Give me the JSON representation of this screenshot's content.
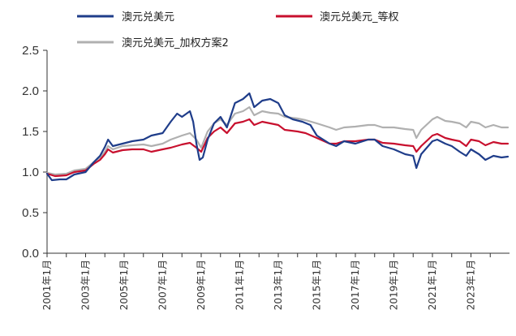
{
  "chart_data": {
    "type": "line",
    "title": "",
    "xlabel": "",
    "ylabel": "",
    "ylim": [
      0,
      2.5
    ],
    "yticks": [
      "0.0",
      "0.5",
      "1.0",
      "1.5",
      "2.0",
      "2.5"
    ],
    "xlim": [
      "2001-01",
      "2024-12"
    ],
    "xticks": [
      "2001年1月",
      "2003年1月",
      "2005年1月",
      "2007年1月",
      "2009年1月",
      "2011年1月",
      "2013年1月",
      "2015年1月",
      "2017年1月",
      "2019年1月",
      "2021年1月",
      "2023年1月"
    ],
    "grid": false,
    "legend_position": "top",
    "series": [
      {
        "name": "澳元兑美元",
        "color": "#1f3d8a",
        "points": [
          [
            "2001-01",
            0.98
          ],
          [
            "2001-04",
            0.9
          ],
          [
            "2001-09",
            0.91
          ],
          [
            "2002-01",
            0.91
          ],
          [
            "2002-06",
            0.97
          ],
          [
            "2003-01",
            1.0
          ],
          [
            "2003-06",
            1.12
          ],
          [
            "2003-10",
            1.2
          ],
          [
            "2004-01",
            1.31
          ],
          [
            "2004-03",
            1.4
          ],
          [
            "2004-06",
            1.32
          ],
          [
            "2004-12",
            1.35
          ],
          [
            "2005-06",
            1.38
          ],
          [
            "2006-01",
            1.4
          ],
          [
            "2006-06",
            1.45
          ],
          [
            "2007-01",
            1.48
          ],
          [
            "2007-06",
            1.62
          ],
          [
            "2007-10",
            1.72
          ],
          [
            "2008-01",
            1.68
          ],
          [
            "2008-06",
            1.75
          ],
          [
            "2008-08",
            1.62
          ],
          [
            "2008-10",
            1.35
          ],
          [
            "2008-12",
            1.15
          ],
          [
            "2009-02",
            1.18
          ],
          [
            "2009-05",
            1.4
          ],
          [
            "2009-09",
            1.6
          ],
          [
            "2010-01",
            1.68
          ],
          [
            "2010-05",
            1.55
          ],
          [
            "2010-10",
            1.85
          ],
          [
            "2011-03",
            1.9
          ],
          [
            "2011-07",
            1.97
          ],
          [
            "2011-10",
            1.8
          ],
          [
            "2012-03",
            1.88
          ],
          [
            "2012-08",
            1.9
          ],
          [
            "2013-01",
            1.85
          ],
          [
            "2013-05",
            1.7
          ],
          [
            "2013-10",
            1.65
          ],
          [
            "2014-04",
            1.62
          ],
          [
            "2014-09",
            1.58
          ],
          [
            "2015-01",
            1.45
          ],
          [
            "2015-09",
            1.35
          ],
          [
            "2016-01",
            1.32
          ],
          [
            "2016-06",
            1.38
          ],
          [
            "2017-01",
            1.35
          ],
          [
            "2017-09",
            1.4
          ],
          [
            "2018-01",
            1.4
          ],
          [
            "2018-06",
            1.32
          ],
          [
            "2019-01",
            1.28
          ],
          [
            "2019-08",
            1.22
          ],
          [
            "2020-01",
            1.2
          ],
          [
            "2020-03",
            1.05
          ],
          [
            "2020-06",
            1.22
          ],
          [
            "2021-01",
            1.38
          ],
          [
            "2021-04",
            1.4
          ],
          [
            "2021-09",
            1.35
          ],
          [
            "2022-01",
            1.32
          ],
          [
            "2022-06",
            1.25
          ],
          [
            "2022-10",
            1.2
          ],
          [
            "2023-01",
            1.28
          ],
          [
            "2023-06",
            1.22
          ],
          [
            "2023-10",
            1.15
          ],
          [
            "2024-03",
            1.2
          ],
          [
            "2024-08",
            1.18
          ],
          [
            "2024-12",
            1.19
          ]
        ]
      },
      {
        "name": "澳元兑美元_等权",
        "color": "#c8102e",
        "points": [
          [
            "2001-01",
            0.98
          ],
          [
            "2001-06",
            0.95
          ],
          [
            "2002-01",
            0.96
          ],
          [
            "2002-06",
            1.0
          ],
          [
            "2003-01",
            1.02
          ],
          [
            "2003-06",
            1.1
          ],
          [
            "2003-10",
            1.15
          ],
          [
            "2004-01",
            1.22
          ],
          [
            "2004-03",
            1.28
          ],
          [
            "2004-06",
            1.24
          ],
          [
            "2004-12",
            1.27
          ],
          [
            "2005-06",
            1.28
          ],
          [
            "2006-01",
            1.28
          ],
          [
            "2006-06",
            1.25
          ],
          [
            "2007-01",
            1.28
          ],
          [
            "2007-06",
            1.3
          ],
          [
            "2008-01",
            1.34
          ],
          [
            "2008-06",
            1.36
          ],
          [
            "2008-10",
            1.3
          ],
          [
            "2009-01",
            1.25
          ],
          [
            "2009-05",
            1.42
          ],
          [
            "2009-09",
            1.5
          ],
          [
            "2010-01",
            1.55
          ],
          [
            "2010-05",
            1.48
          ],
          [
            "2010-10",
            1.6
          ],
          [
            "2011-03",
            1.62
          ],
          [
            "2011-07",
            1.65
          ],
          [
            "2011-10",
            1.58
          ],
          [
            "2012-03",
            1.62
          ],
          [
            "2012-08",
            1.6
          ],
          [
            "2013-01",
            1.58
          ],
          [
            "2013-05",
            1.52
          ],
          [
            "2014-01",
            1.5
          ],
          [
            "2014-06",
            1.48
          ],
          [
            "2015-01",
            1.42
          ],
          [
            "2015-09",
            1.35
          ],
          [
            "2016-01",
            1.35
          ],
          [
            "2016-06",
            1.38
          ],
          [
            "2017-01",
            1.38
          ],
          [
            "2017-09",
            1.4
          ],
          [
            "2018-01",
            1.4
          ],
          [
            "2018-06",
            1.36
          ],
          [
            "2019-01",
            1.35
          ],
          [
            "2019-08",
            1.33
          ],
          [
            "2020-01",
            1.32
          ],
          [
            "2020-03",
            1.25
          ],
          [
            "2020-06",
            1.32
          ],
          [
            "2021-01",
            1.45
          ],
          [
            "2021-04",
            1.47
          ],
          [
            "2021-09",
            1.42
          ],
          [
            "2022-01",
            1.4
          ],
          [
            "2022-06",
            1.38
          ],
          [
            "2022-10",
            1.32
          ],
          [
            "2023-01",
            1.4
          ],
          [
            "2023-06",
            1.38
          ],
          [
            "2023-10",
            1.33
          ],
          [
            "2024-03",
            1.37
          ],
          [
            "2024-08",
            1.35
          ],
          [
            "2024-12",
            1.35
          ]
        ]
      },
      {
        "name": "澳元兑美元_加权方案2",
        "color": "#b0b0b0",
        "points": [
          [
            "2001-01",
            0.99
          ],
          [
            "2001-06",
            0.97
          ],
          [
            "2002-01",
            0.98
          ],
          [
            "2002-06",
            1.02
          ],
          [
            "2003-01",
            1.04
          ],
          [
            "2003-06",
            1.12
          ],
          [
            "2003-10",
            1.18
          ],
          [
            "2004-01",
            1.25
          ],
          [
            "2004-03",
            1.32
          ],
          [
            "2004-06",
            1.28
          ],
          [
            "2004-12",
            1.32
          ],
          [
            "2005-06",
            1.33
          ],
          [
            "2006-01",
            1.34
          ],
          [
            "2006-06",
            1.32
          ],
          [
            "2007-01",
            1.35
          ],
          [
            "2007-06",
            1.4
          ],
          [
            "2008-01",
            1.45
          ],
          [
            "2008-06",
            1.48
          ],
          [
            "2008-10",
            1.4
          ],
          [
            "2009-01",
            1.3
          ],
          [
            "2009-05",
            1.5
          ],
          [
            "2009-09",
            1.6
          ],
          [
            "2010-01",
            1.65
          ],
          [
            "2010-05",
            1.58
          ],
          [
            "2010-10",
            1.72
          ],
          [
            "2011-03",
            1.75
          ],
          [
            "2011-07",
            1.8
          ],
          [
            "2011-10",
            1.7
          ],
          [
            "2012-03",
            1.75
          ],
          [
            "2012-08",
            1.73
          ],
          [
            "2013-01",
            1.72
          ],
          [
            "2013-05",
            1.68
          ],
          [
            "2014-01",
            1.66
          ],
          [
            "2014-06",
            1.64
          ],
          [
            "2015-01",
            1.6
          ],
          [
            "2015-09",
            1.55
          ],
          [
            "2016-01",
            1.52
          ],
          [
            "2016-06",
            1.55
          ],
          [
            "2017-01",
            1.56
          ],
          [
            "2017-09",
            1.58
          ],
          [
            "2018-01",
            1.58
          ],
          [
            "2018-06",
            1.55
          ],
          [
            "2019-01",
            1.55
          ],
          [
            "2019-08",
            1.53
          ],
          [
            "2020-01",
            1.52
          ],
          [
            "2020-03",
            1.42
          ],
          [
            "2020-06",
            1.52
          ],
          [
            "2021-01",
            1.65
          ],
          [
            "2021-04",
            1.68
          ],
          [
            "2021-09",
            1.63
          ],
          [
            "2022-01",
            1.62
          ],
          [
            "2022-06",
            1.6
          ],
          [
            "2022-10",
            1.55
          ],
          [
            "2023-01",
            1.62
          ],
          [
            "2023-06",
            1.6
          ],
          [
            "2023-10",
            1.55
          ],
          [
            "2024-03",
            1.58
          ],
          [
            "2024-08",
            1.55
          ],
          [
            "2024-12",
            1.55
          ]
        ]
      }
    ]
  }
}
